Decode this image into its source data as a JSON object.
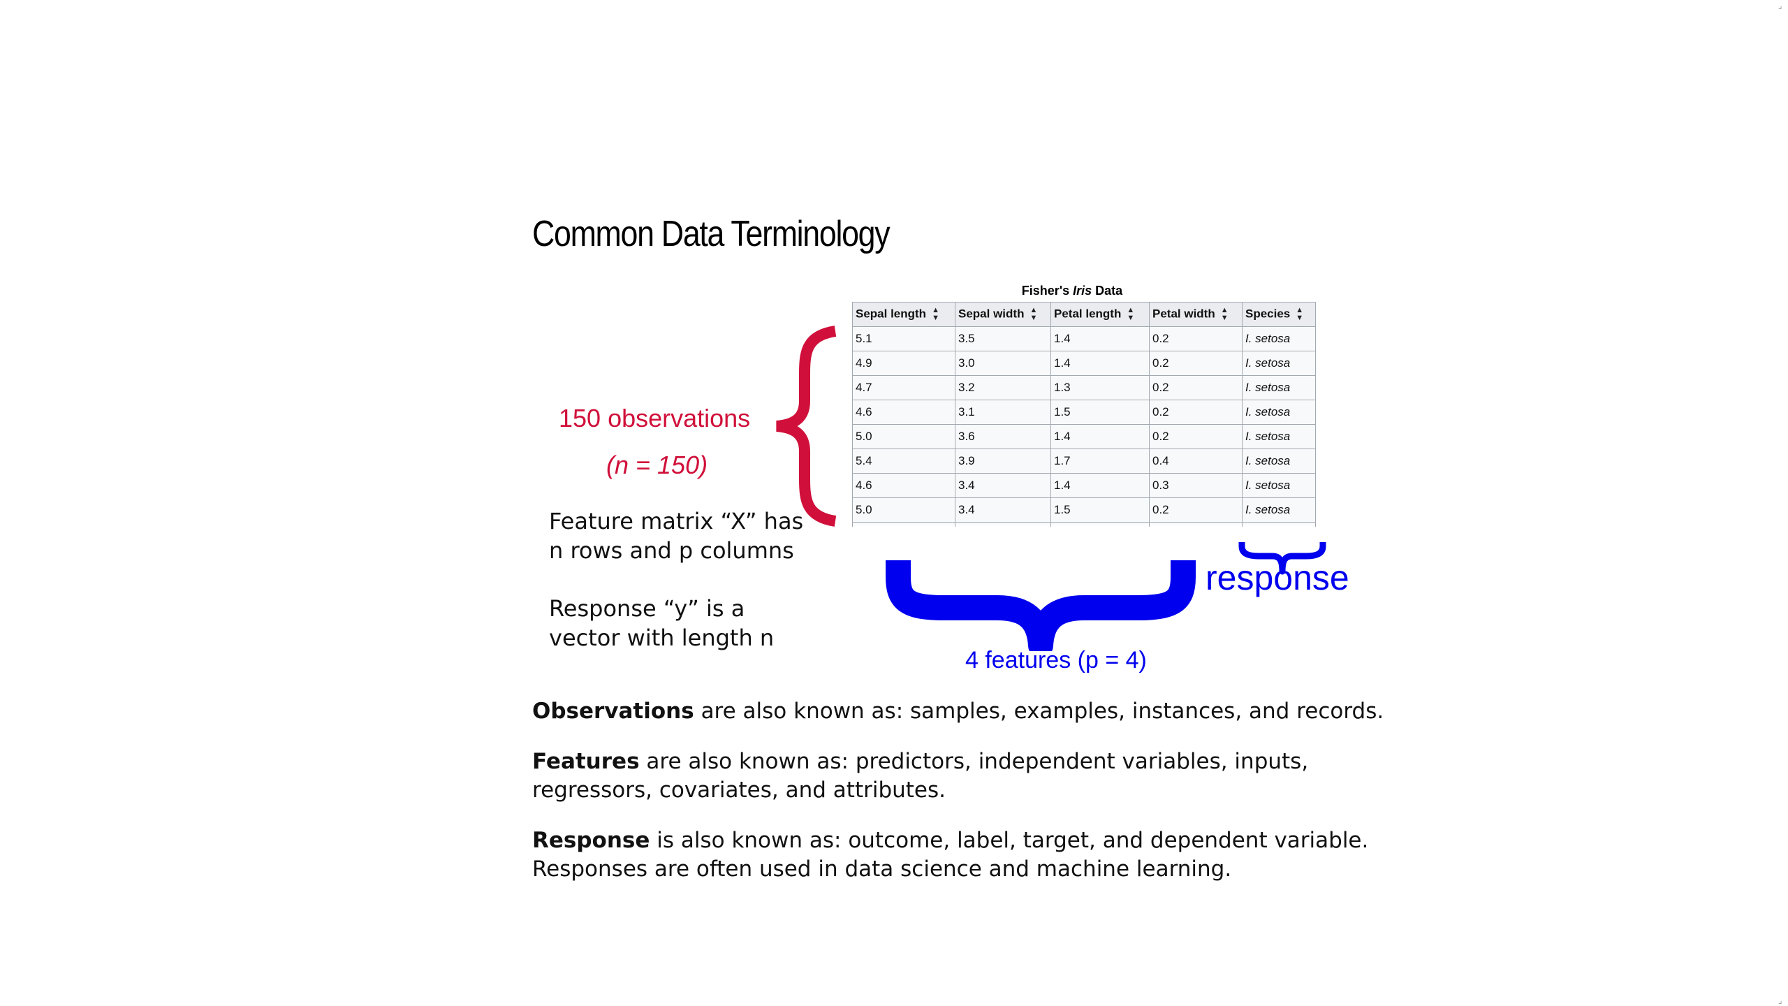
{
  "title": "Common Data Terminology",
  "figure": {
    "caption": {
      "prefix": "Fisher's",
      "emphasis": "Iris",
      "suffix": "Data"
    },
    "table": {
      "headers": [
        "Sepal length",
        "Sepal width",
        "Petal length",
        "Petal width",
        "Species"
      ],
      "rows": [
        [
          "5.1",
          "3.5",
          "1.4",
          "0.2",
          "I. setosa"
        ],
        [
          "4.9",
          "3.0",
          "1.4",
          "0.2",
          "I. setosa"
        ],
        [
          "4.7",
          "3.2",
          "1.3",
          "0.2",
          "I. setosa"
        ],
        [
          "4.6",
          "3.1",
          "1.5",
          "0.2",
          "I. setosa"
        ],
        [
          "5.0",
          "3.6",
          "1.4",
          "0.2",
          "I. setosa"
        ],
        [
          "5.4",
          "3.9",
          "1.7",
          "0.4",
          "I. setosa"
        ],
        [
          "4.6",
          "3.4",
          "1.4",
          "0.3",
          "I. setosa"
        ],
        [
          "5.0",
          "3.4",
          "1.5",
          "0.2",
          "I. setosa"
        ]
      ],
      "sort_icon": "sort-arrows-icon"
    },
    "observations_label": "150 observations",
    "observations_n": "(n = 150)",
    "features_label": "4 features (p = 4)",
    "response_label": "response",
    "note_matrix": "Feature matrix “X” has n rows and p columns",
    "note_response": "Response “y” is a vector with length n",
    "colors": {
      "observations": "#d0103a",
      "features": "#0000ee"
    }
  },
  "definitions": [
    {
      "term": "Observations",
      "text": "are also known as: samples, examples, instances, and records."
    },
    {
      "term": "Features",
      "text": "are also known as: predictors, independent variables, inputs, regressors, covariates, and attributes."
    },
    {
      "term": "Response",
      "text": "is also known as: outcome, label, target, and dependent variable. Responses are often used in data science and machine learning."
    }
  ]
}
